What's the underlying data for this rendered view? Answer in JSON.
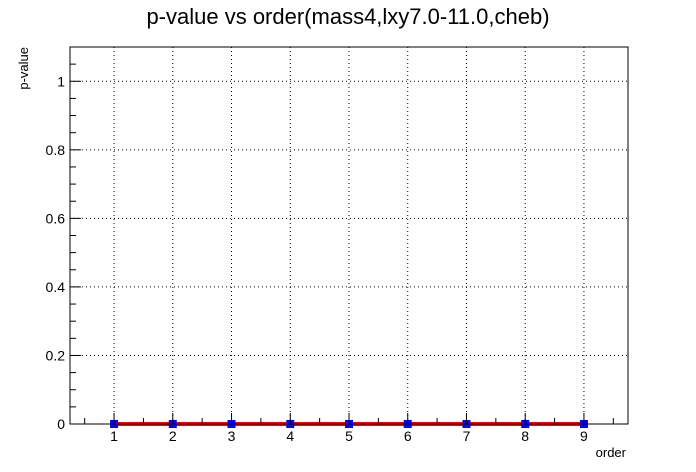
{
  "chart_data": {
    "type": "line",
    "title": "p-value vs order(mass4,lxy7.0-11.0,cheb)",
    "xlabel": "order",
    "ylabel": "p-value",
    "xlim": [
      0.25,
      9.75
    ],
    "ylim": [
      0,
      1.1
    ],
    "x_ticks": [
      1,
      2,
      3,
      4,
      5,
      6,
      7,
      8,
      9
    ],
    "y_ticks": [
      0,
      0.2,
      0.4,
      0.6,
      0.8,
      1
    ],
    "y_tick_labels": [
      "0",
      "0.2",
      "0.4",
      "0.6",
      "0.8",
      "1"
    ],
    "grid": true,
    "series": [
      {
        "x": [
          1,
          2,
          3,
          4,
          5,
          6,
          7,
          8,
          9
        ],
        "values": [
          0,
          0,
          0,
          0,
          0,
          0,
          0,
          0,
          0
        ],
        "line_color": "#ff0000",
        "marker_color": "#0000ff"
      }
    ]
  }
}
